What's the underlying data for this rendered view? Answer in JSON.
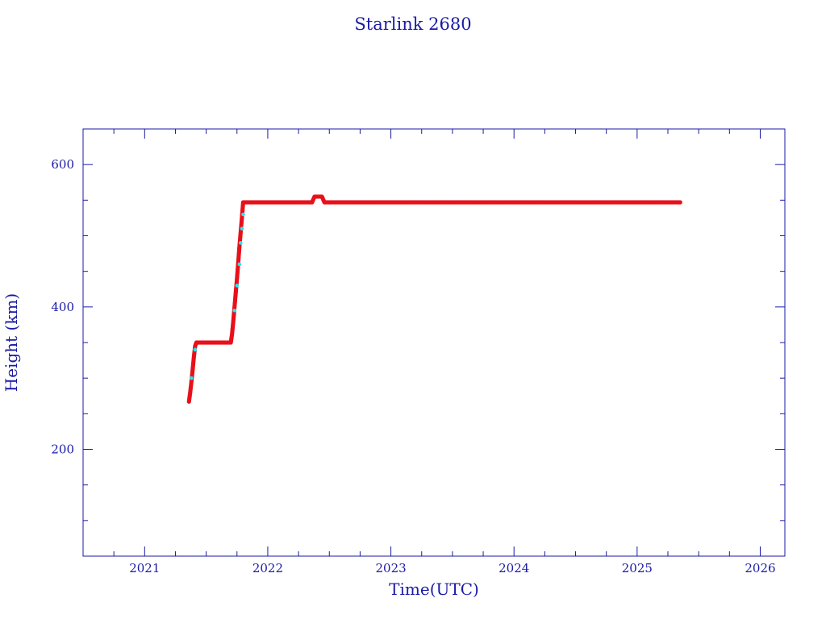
{
  "chart_data": {
    "type": "scatter",
    "title": "Starlink 2680",
    "xlabel": "Time(UTC)",
    "ylabel": "Height (km)",
    "xlim": [
      2020.5,
      2026.2
    ],
    "ylim": [
      50,
      650
    ],
    "x_ticks": [
      2021,
      2022,
      2023,
      2024,
      2025,
      2026
    ],
    "x_tick_labels": [
      "2021",
      "2022",
      "2023",
      "2024",
      "2025",
      "2026"
    ],
    "y_ticks": [
      200,
      400,
      600
    ],
    "y_tick_labels": [
      "200",
      "400",
      "600"
    ],
    "grid": false,
    "colors": {
      "axis": "#1a1aa6",
      "main_series": "#e8101a",
      "secondary_series": "#22e6ee"
    },
    "series": [
      {
        "color": "#e8101a",
        "x": [
          2021.36,
          2021.37,
          2021.38,
          2021.39,
          2021.4,
          2021.41,
          2021.42,
          2021.45,
          2021.5,
          2021.55,
          2021.6,
          2021.65,
          2021.7,
          2021.71,
          2021.72,
          2021.73,
          2021.74,
          2021.75,
          2021.76,
          2021.77,
          2021.78,
          2021.79,
          2021.8,
          2021.85,
          2021.95,
          2022.1,
          2022.25,
          2022.36,
          2022.38,
          2022.4,
          2022.42,
          2022.44,
          2022.46,
          2022.48,
          2022.6,
          2022.8,
          2023.0,
          2023.3,
          2023.6,
          2023.9,
          2024.2,
          2024.5,
          2024.8,
          2025.1,
          2025.35
        ],
        "y": [
          267,
          280,
          295,
          312,
          330,
          345,
          350,
          350,
          350,
          350,
          350,
          350,
          350,
          362,
          380,
          400,
          420,
          440,
          462,
          485,
          505,
          525,
          547,
          547,
          547,
          547,
          547,
          547,
          555,
          555,
          555,
          555,
          547,
          547,
          547,
          547,
          547,
          547,
          547,
          547,
          547,
          547,
          547,
          547,
          547
        ]
      },
      {
        "color": "#22e6ee",
        "x": [
          2021.38,
          2021.41,
          2021.73,
          2021.75,
          2021.77,
          2021.78,
          2021.79,
          2021.8
        ],
        "y": [
          300,
          340,
          395,
          430,
          460,
          490,
          510,
          530
        ]
      }
    ]
  }
}
